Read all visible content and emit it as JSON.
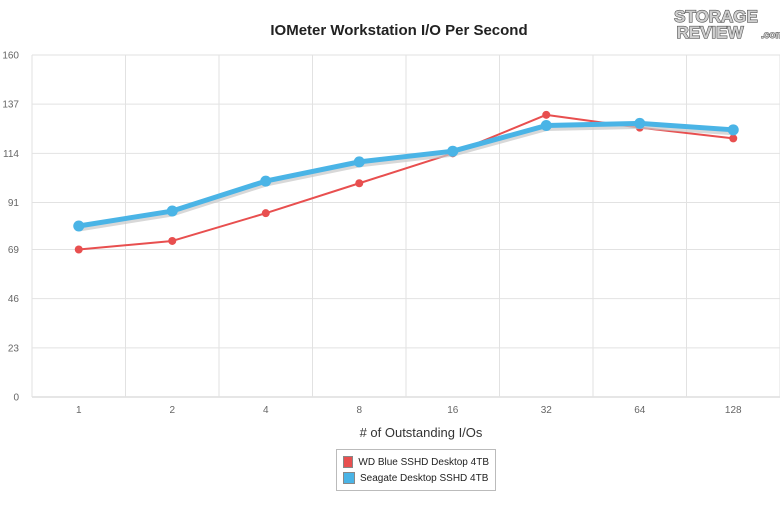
{
  "chart_data": {
    "type": "line",
    "title": "IOMeter Workstation I/O Per Second",
    "xlabel": "# of Outstanding I/Os",
    "ylabel": "",
    "categories": [
      "1",
      "2",
      "4",
      "8",
      "16",
      "32",
      "64",
      "128"
    ],
    "ylim": [
      0,
      160
    ],
    "yticks": [
      "0",
      "23",
      "46",
      "69",
      "91",
      "114",
      "137",
      "160"
    ],
    "grid": true,
    "legend_position": "bottom-center",
    "series": [
      {
        "name": "WD Blue SSHD Desktop 4TB",
        "color": "#e84f4f",
        "values": [
          69,
          73,
          86,
          100,
          114,
          132,
          126,
          121
        ]
      },
      {
        "name": "Seagate Desktop SSHD 4TB",
        "color": "#4ab4e6",
        "values": [
          80,
          87,
          101,
          110,
          115,
          127,
          128,
          125
        ]
      }
    ]
  },
  "watermark": {
    "line1": "STORAGE",
    "line2": "REVIEW",
    "suffix": ".com"
  }
}
